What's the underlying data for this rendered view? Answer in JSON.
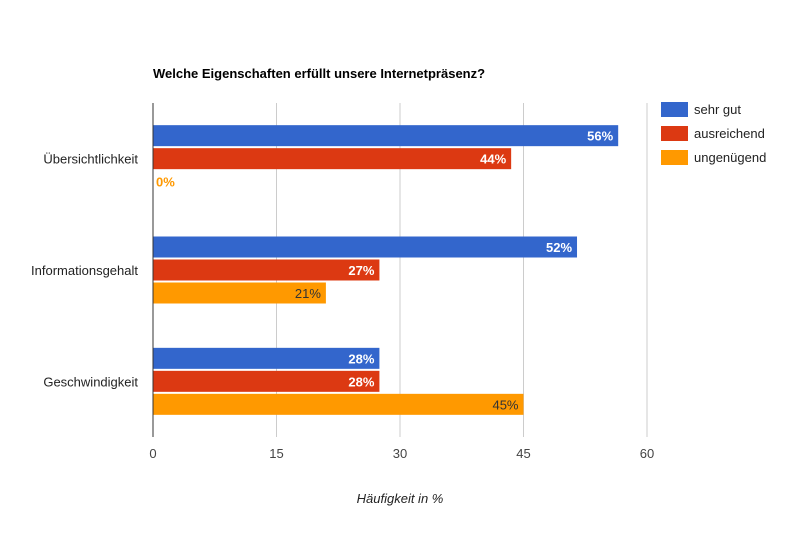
{
  "chart_data": {
    "type": "bar",
    "orientation": "horizontal",
    "title": "Welche Eigenschaften erfüllt unsere Internetpräsenz?",
    "xlabel": "Häufigkeit in %",
    "ylabel": "",
    "xlim": [
      0,
      60
    ],
    "xticks": [
      0,
      15,
      30,
      45,
      60
    ],
    "xtick_labels": [
      "0",
      "15",
      "30",
      "45",
      "60"
    ],
    "grid": true,
    "legend_position": "right",
    "categories": [
      "Übersichtlichkeit",
      "Informationsgehalt",
      "Geschwindigkeit"
    ],
    "series": [
      {
        "name": "sehr gut",
        "color": "#3366cc",
        "values": [
          56.5,
          51.5,
          27.5
        ],
        "labels": [
          "56%",
          "52%",
          "28%"
        ]
      },
      {
        "name": "ausreichend",
        "color": "#dc3912",
        "values": [
          43.5,
          27.5,
          27.5
        ],
        "labels": [
          "44%",
          "27%",
          "28%"
        ]
      },
      {
        "name": "ungenügend",
        "color": "#ff9900",
        "values": [
          0,
          21,
          45
        ],
        "labels": [
          "0%",
          "21%",
          "45%"
        ]
      }
    ]
  }
}
